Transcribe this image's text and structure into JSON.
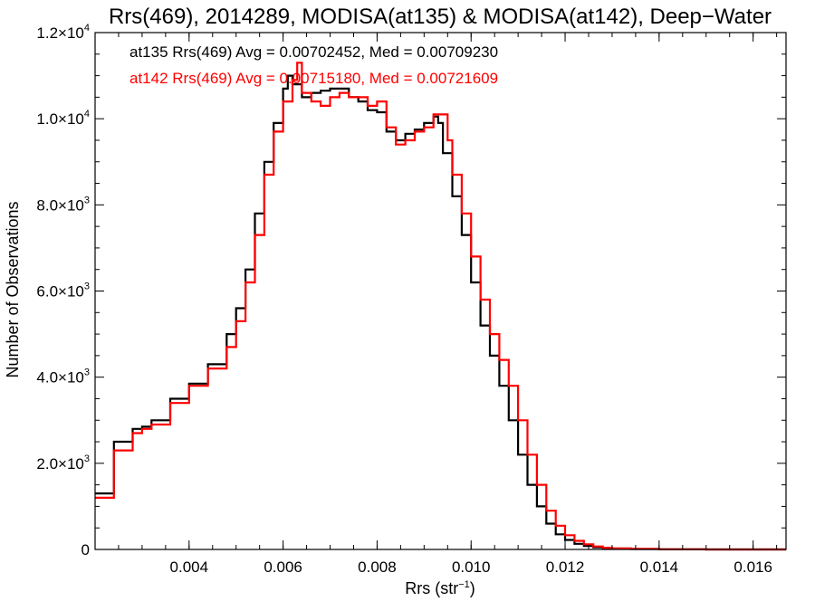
{
  "chart_data": {
    "type": "histogram",
    "title": "Rrs(469), 2014289, MODISA(at135) & MODISA(at142), Deep−Water",
    "xlabel": "Rrs (str",
    "xlabel_sup": "−1",
    "xlabel_end": ")",
    "ylabel": "Number of Observations",
    "xlim": [
      0.002,
      0.0167
    ],
    "ylim": [
      0,
      12000
    ],
    "x_ticks": [
      {
        "value": 0.004,
        "label": "0.004"
      },
      {
        "value": 0.006,
        "label": "0.006"
      },
      {
        "value": 0.008,
        "label": "0.008"
      },
      {
        "value": 0.01,
        "label": "0.010"
      },
      {
        "value": 0.012,
        "label": "0.012"
      },
      {
        "value": 0.014,
        "label": "0.014"
      },
      {
        "value": 0.016,
        "label": "0.016"
      }
    ],
    "y_ticks": [
      {
        "value": 0,
        "mantissa": "0",
        "exp": ""
      },
      {
        "value": 2000,
        "mantissa": "2.0×10",
        "exp": "3"
      },
      {
        "value": 4000,
        "mantissa": "4.0×10",
        "exp": "3"
      },
      {
        "value": 6000,
        "mantissa": "6.0×10",
        "exp": "3"
      },
      {
        "value": 8000,
        "mantissa": "8.0×10",
        "exp": "3"
      },
      {
        "value": 10000,
        "mantissa": "1.0×10",
        "exp": "4"
      },
      {
        "value": 12000,
        "mantissa": "1.2×10",
        "exp": "4"
      }
    ],
    "legend_placement": "top-left",
    "series": [
      {
        "name": "at135 Rrs(469) Avg = 0.00702452, Med = 0.00709230",
        "color": "#000000",
        "x": [
          0.002,
          0.0024,
          0.0028,
          0.003,
          0.0032,
          0.0036,
          0.004,
          0.0044,
          0.0048,
          0.005,
          0.0052,
          0.0054,
          0.0056,
          0.0058,
          0.006,
          0.0061,
          0.0062,
          0.0064,
          0.0066,
          0.0068,
          0.007,
          0.0072,
          0.0074,
          0.0076,
          0.0078,
          0.008,
          0.0082,
          0.0084,
          0.0086,
          0.0088,
          0.009,
          0.0092,
          0.0093,
          0.0094,
          0.0096,
          0.0098,
          0.01,
          0.0102,
          0.0104,
          0.0106,
          0.0108,
          0.011,
          0.0112,
          0.0114,
          0.0116,
          0.0118,
          0.012,
          0.0122,
          0.0124,
          0.0126,
          0.0128,
          0.013,
          0.0134,
          0.014,
          0.015,
          0.0167
        ],
        "y": [
          1300,
          2500,
          2800,
          2850,
          3000,
          3500,
          3850,
          4300,
          5000,
          5600,
          6500,
          7800,
          9000,
          9900,
          10700,
          11000,
          10800,
          10500,
          10600,
          10650,
          10700,
          10700,
          10500,
          10400,
          10200,
          10150,
          9700,
          9500,
          9650,
          9750,
          9900,
          10050,
          9900,
          9200,
          8200,
          7300,
          6200,
          5200,
          4500,
          3800,
          3000,
          2200,
          1500,
          1000,
          600,
          350,
          220,
          130,
          80,
          50,
          30,
          20,
          10,
          5,
          0,
          0
        ]
      },
      {
        "name": "at142 Rrs(469) Avg = 0.00715180, Med = 0.00721609",
        "color": "#ff0000",
        "x": [
          0.002,
          0.0024,
          0.0028,
          0.003,
          0.0032,
          0.0036,
          0.004,
          0.0044,
          0.0048,
          0.005,
          0.0052,
          0.0054,
          0.0056,
          0.0058,
          0.006,
          0.0062,
          0.0063,
          0.0064,
          0.0066,
          0.0068,
          0.007,
          0.0072,
          0.0074,
          0.0076,
          0.0078,
          0.008,
          0.0082,
          0.0084,
          0.0086,
          0.0088,
          0.009,
          0.0092,
          0.0094,
          0.0095,
          0.0096,
          0.0098,
          0.01,
          0.0102,
          0.0104,
          0.0106,
          0.0108,
          0.011,
          0.0112,
          0.0114,
          0.0116,
          0.0118,
          0.012,
          0.0122,
          0.0124,
          0.0126,
          0.0128,
          0.013,
          0.0134,
          0.014,
          0.015,
          0.0167
        ],
        "y": [
          1200,
          2300,
          2700,
          2800,
          2900,
          3400,
          3800,
          4200,
          4700,
          5300,
          6200,
          7300,
          8700,
          9700,
          10400,
          10900,
          11300,
          10600,
          10400,
          10300,
          10500,
          10600,
          10500,
          10500,
          10300,
          10400,
          9800,
          9400,
          9500,
          9700,
          9800,
          10100,
          10100,
          9500,
          8700,
          7800,
          6800,
          5800,
          5000,
          4400,
          3800,
          3000,
          2200,
          1500,
          900,
          550,
          330,
          200,
          120,
          70,
          40,
          25,
          12,
          5,
          0,
          0
        ]
      }
    ]
  }
}
